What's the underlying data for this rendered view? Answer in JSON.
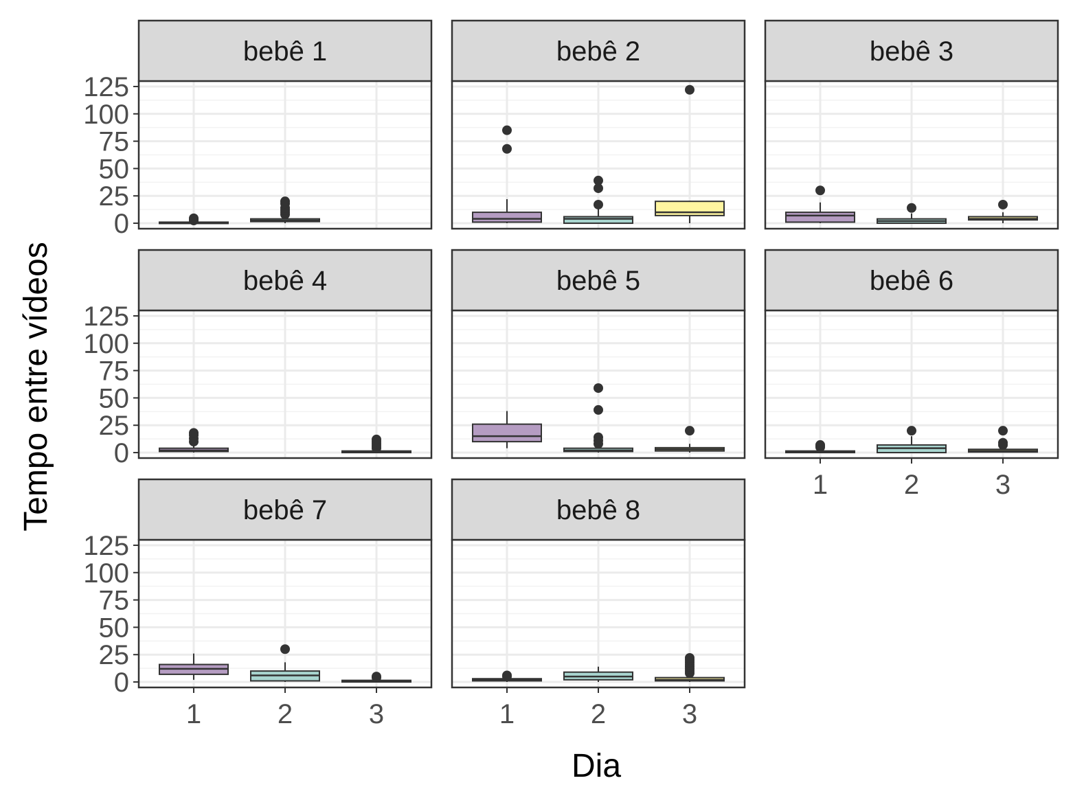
{
  "chart_data": {
    "type": "boxplot",
    "xlabel": "Dia",
    "ylabel": "Tempo entre vídeos",
    "ylim": [
      -5,
      130
    ],
    "y_ticks": [
      0,
      25,
      50,
      75,
      100,
      125
    ],
    "x_categories": [
      "1",
      "2",
      "3"
    ],
    "grid": true,
    "colors": {
      "1": "#B59CC2",
      "2": "#A8D5CF",
      "3": "#FFF5A0"
    },
    "panels": [
      {
        "label": "bebê 1",
        "boxes": [
          {
            "x": "1",
            "q1": 0,
            "median": 0.5,
            "q3": 1,
            "whisker_low": 0,
            "whisker_high": 2,
            "outliers": [
              2.5,
              3.5,
              4.5
            ]
          },
          {
            "x": "2",
            "q1": 1.5,
            "median": 2.5,
            "q3": 4,
            "whisker_low": 0,
            "whisker_high": 7,
            "outliers": [
              8,
              10,
              12,
              14,
              18,
              20
            ]
          }
        ]
      },
      {
        "label": "bebê 2",
        "boxes": [
          {
            "x": "1",
            "q1": 1,
            "median": 4,
            "q3": 10,
            "whisker_low": 0,
            "whisker_high": 22,
            "outliers": [
              68,
              85
            ]
          },
          {
            "x": "2",
            "q1": 0,
            "median": 4,
            "q3": 6,
            "whisker_low": 0,
            "whisker_high": 14,
            "outliers": [
              17,
              32,
              39
            ]
          },
          {
            "x": "3",
            "q1": 7,
            "median": 10,
            "q3": 20,
            "whisker_low": 0,
            "whisker_high": 20,
            "outliers": [
              122
            ]
          }
        ]
      },
      {
        "label": "bebê 3",
        "boxes": [
          {
            "x": "1",
            "q1": 1,
            "median": 7,
            "q3": 10,
            "whisker_low": 0,
            "whisker_high": 19,
            "outliers": [
              30
            ]
          },
          {
            "x": "2",
            "q1": 0,
            "median": 2,
            "q3": 4,
            "whisker_low": 0,
            "whisker_high": 9,
            "outliers": [
              14
            ]
          },
          {
            "x": "3",
            "q1": 3,
            "median": 4,
            "q3": 6,
            "whisker_low": 0,
            "whisker_high": 10,
            "outliers": [
              17
            ]
          }
        ]
      },
      {
        "label": "bebê 4",
        "boxes": [
          {
            "x": "1",
            "q1": 1,
            "median": 2,
            "q3": 4,
            "whisker_low": 0,
            "whisker_high": 8,
            "outliers": [
              10,
              13,
              16,
              18
            ]
          },
          {
            "x": "3",
            "q1": 0,
            "median": 0.5,
            "q3": 1.5,
            "whisker_low": 0,
            "whisker_high": 3,
            "outliers": [
              4,
              6,
              8,
              10,
              12
            ]
          }
        ]
      },
      {
        "label": "bebê 5",
        "boxes": [
          {
            "x": "1",
            "q1": 10,
            "median": 15,
            "q3": 26,
            "whisker_low": 4,
            "whisker_high": 38,
            "outliers": []
          },
          {
            "x": "2",
            "q1": 1,
            "median": 2,
            "q3": 4,
            "whisker_low": 0,
            "whisker_high": 7,
            "outliers": [
              8,
              11,
              14,
              39,
              59
            ]
          },
          {
            "x": "3",
            "q1": 1.5,
            "median": 3,
            "q3": 4.5,
            "whisker_low": 0,
            "whisker_high": 8,
            "outliers": [
              20
            ]
          }
        ]
      },
      {
        "label": "bebê 6",
        "boxes": [
          {
            "x": "1",
            "q1": 0,
            "median": 0.5,
            "q3": 1.5,
            "whisker_low": 0,
            "whisker_high": 3,
            "outliers": [
              5,
              6,
              7
            ]
          },
          {
            "x": "2",
            "q1": 0,
            "median": 4,
            "q3": 7,
            "whisker_low": 0,
            "whisker_high": 15,
            "outliers": [
              20
            ]
          },
          {
            "x": "3",
            "q1": 0.5,
            "median": 1.5,
            "q3": 3,
            "whisker_low": 0,
            "whisker_high": 5,
            "outliers": [
              7,
              9,
              20
            ]
          }
        ]
      },
      {
        "label": "bebê 7",
        "boxes": [
          {
            "x": "1",
            "q1": 7,
            "median": 12,
            "q3": 16,
            "whisker_low": 2,
            "whisker_high": 26,
            "outliers": []
          },
          {
            "x": "2",
            "q1": 1,
            "median": 6,
            "q3": 10,
            "whisker_low": 0,
            "whisker_high": 18,
            "outliers": [
              30
            ]
          },
          {
            "x": "3",
            "q1": 0,
            "median": 0.5,
            "q3": 1.5,
            "whisker_low": 0,
            "whisker_high": 3,
            "outliers": [
              4,
              5
            ]
          }
        ]
      },
      {
        "label": "bebê 8",
        "boxes": [
          {
            "x": "1",
            "q1": 1,
            "median": 2,
            "q3": 3,
            "whisker_low": 0,
            "whisker_high": 4,
            "outliers": [
              5,
              6
            ]
          },
          {
            "x": "2",
            "q1": 2,
            "median": 5,
            "q3": 9,
            "whisker_low": 0,
            "whisker_high": 14,
            "outliers": []
          },
          {
            "x": "3",
            "q1": 1,
            "median": 2,
            "q3": 4,
            "whisker_low": 0,
            "whisker_high": 7,
            "outliers": [
              8,
              10,
              12,
              14,
              16,
              18,
              20,
              22
            ]
          }
        ]
      }
    ]
  }
}
